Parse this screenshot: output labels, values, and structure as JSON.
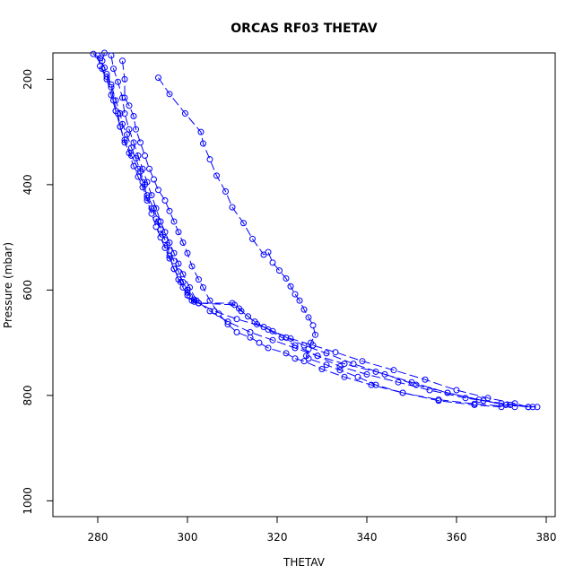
{
  "chart_data": {
    "type": "line",
    "title": "ORCAS RF03 THETAV",
    "xlabel": "THETAV",
    "ylabel": "Pressure (mbar)",
    "xlim": [
      270,
      382
    ],
    "ylim": [
      1030,
      150
    ],
    "y_reversed": true,
    "x_ticks": [
      280,
      300,
      320,
      340,
      360,
      380
    ],
    "y_ticks": [
      200,
      400,
      600,
      800,
      1000
    ],
    "grid": false,
    "line_style": "long-dash",
    "marker": "open-circle",
    "color": "#0000ff",
    "series": [
      {
        "points": [
          [
            281.5,
            150
          ],
          [
            281,
            165
          ],
          [
            281,
            180
          ],
          [
            282,
            195
          ],
          [
            283,
            215
          ],
          [
            283.5,
            240
          ],
          [
            284.5,
            265
          ],
          [
            285,
            290
          ],
          [
            286,
            315
          ],
          [
            287,
            340
          ],
          [
            288,
            365
          ],
          [
            289,
            385
          ],
          [
            290,
            405
          ],
          [
            291,
            425
          ],
          [
            292,
            445
          ],
          [
            293,
            465
          ],
          [
            294,
            485
          ],
          [
            295,
            505
          ],
          [
            296,
            525
          ],
          [
            297,
            545
          ],
          [
            298,
            565
          ],
          [
            299,
            585
          ],
          [
            300,
            600
          ],
          [
            300.5,
            612
          ],
          [
            301.5,
            622
          ],
          [
            302.5,
            625
          ],
          [
            310,
            625
          ],
          [
            312,
            640
          ],
          [
            315,
            660
          ],
          [
            318,
            675
          ],
          [
            321,
            690
          ],
          [
            324,
            705
          ],
          [
            329,
            725
          ],
          [
            334,
            745
          ],
          [
            340,
            760
          ],
          [
            347,
            775
          ],
          [
            354,
            790
          ],
          [
            362,
            805
          ],
          [
            370,
            815
          ],
          [
            377,
            822
          ]
        ]
      },
      {
        "points": [
          [
            280,
            155
          ],
          [
            280.5,
            175
          ],
          [
            282,
            200
          ],
          [
            283,
            230
          ],
          [
            284,
            260
          ],
          [
            285,
            290
          ],
          [
            286,
            320
          ],
          [
            287.5,
            345
          ],
          [
            289,
            370
          ],
          [
            290,
            395
          ],
          [
            291,
            420
          ],
          [
            292.5,
            445
          ],
          [
            293.5,
            470
          ],
          [
            294.5,
            495
          ],
          [
            295.5,
            515
          ],
          [
            296,
            535
          ],
          [
            297,
            560
          ],
          [
            298.5,
            585
          ],
          [
            300,
            605
          ],
          [
            301.5,
            618
          ],
          [
            302.5,
            625
          ],
          [
            306,
            640
          ],
          [
            311,
            655
          ],
          [
            317,
            670
          ],
          [
            322,
            690
          ],
          [
            326,
            705
          ],
          [
            331,
            720
          ],
          [
            337,
            740
          ],
          [
            344,
            760
          ],
          [
            351,
            780
          ],
          [
            358,
            795
          ],
          [
            366,
            810
          ],
          [
            371,
            818
          ],
          [
            378,
            822
          ]
        ]
      },
      {
        "points": [
          [
            283,
            155
          ],
          [
            283.5,
            180
          ],
          [
            284.5,
            205
          ],
          [
            285.5,
            235
          ],
          [
            286,
            265
          ],
          [
            287,
            295
          ],
          [
            288,
            320
          ],
          [
            289,
            345
          ],
          [
            290,
            370
          ],
          [
            291,
            395
          ],
          [
            292,
            420
          ],
          [
            293,
            445
          ],
          [
            294,
            470
          ],
          [
            295,
            490
          ],
          [
            296,
            510
          ],
          [
            297,
            530
          ],
          [
            298,
            550
          ],
          [
            299,
            570
          ],
          [
            300.5,
            595
          ],
          [
            302,
            620
          ],
          [
            305,
            640
          ],
          [
            309,
            660
          ],
          [
            314,
            680
          ],
          [
            319,
            695
          ],
          [
            324,
            710
          ],
          [
            329,
            725
          ],
          [
            335,
            740
          ],
          [
            342,
            755
          ],
          [
            350,
            775
          ],
          [
            358,
            795
          ],
          [
            365,
            808
          ],
          [
            372,
            818
          ],
          [
            376,
            822
          ]
        ]
      },
      {
        "points": [
          [
            285.5,
            165
          ],
          [
            286,
            200
          ],
          [
            286,
            235
          ],
          [
            287,
            250
          ],
          [
            288,
            270
          ],
          [
            288.5,
            295
          ],
          [
            289.5,
            320
          ],
          [
            290.5,
            345
          ],
          [
            291.5,
            370
          ],
          [
            292.5,
            390
          ],
          [
            293.5,
            410
          ],
          [
            295,
            430
          ],
          [
            296,
            450
          ],
          [
            297,
            470
          ],
          [
            298,
            490
          ],
          [
            299,
            510
          ],
          [
            300,
            530
          ],
          [
            301,
            555
          ],
          [
            302.5,
            580
          ],
          [
            303.5,
            595
          ],
          [
            305,
            620
          ],
          [
            307,
            645
          ],
          [
            309,
            665
          ],
          [
            311,
            680
          ],
          [
            314,
            690
          ],
          [
            316,
            700
          ],
          [
            318,
            710
          ],
          [
            322,
            720
          ],
          [
            324,
            730
          ],
          [
            326,
            735
          ],
          [
            330,
            750
          ],
          [
            335,
            765
          ],
          [
            341,
            780
          ],
          [
            348,
            795
          ],
          [
            356,
            808
          ],
          [
            364,
            816
          ],
          [
            373,
            822
          ]
        ]
      },
      {
        "points": [
          [
            293.5,
            197
          ],
          [
            296,
            228
          ],
          [
            299.5,
            265
          ],
          [
            303,
            300
          ],
          [
            303.5,
            322
          ],
          [
            305,
            352
          ],
          [
            306.5,
            383
          ],
          [
            308.5,
            413
          ],
          [
            310,
            443
          ],
          [
            312.5,
            473
          ],
          [
            314.5,
            503
          ],
          [
            317,
            533
          ],
          [
            318,
            528
          ],
          [
            319,
            548
          ],
          [
            320.5,
            563
          ],
          [
            322,
            578
          ],
          [
            323,
            593
          ],
          [
            324,
            608
          ],
          [
            325,
            620
          ],
          [
            326,
            637
          ],
          [
            327,
            652
          ],
          [
            328,
            667
          ],
          [
            328.5,
            685
          ],
          [
            327.5,
            700
          ],
          [
            327,
            712
          ],
          [
            326.5,
            725
          ],
          [
            327,
            730
          ],
          [
            331,
            742
          ],
          [
            334,
            752
          ],
          [
            338,
            765
          ],
          [
            342,
            780
          ],
          [
            348,
            795
          ],
          [
            356,
            810
          ],
          [
            364,
            818
          ],
          [
            370,
            822
          ]
        ]
      },
      {
        "points": [
          [
            279,
            152
          ],
          [
            280.5,
            160
          ],
          [
            281.5,
            178
          ],
          [
            282,
            190
          ],
          [
            283,
            210
          ],
          [
            284,
            240
          ],
          [
            285,
            265
          ],
          [
            285.5,
            285
          ],
          [
            286.5,
            305
          ],
          [
            287.5,
            330
          ],
          [
            288.5,
            350
          ],
          [
            289.5,
            375
          ],
          [
            290.5,
            400
          ],
          [
            291,
            430
          ],
          [
            292,
            455
          ],
          [
            293,
            480
          ],
          [
            294,
            500
          ],
          [
            295,
            520
          ],
          [
            296,
            540
          ],
          [
            297,
            560
          ],
          [
            298,
            580
          ],
          [
            299,
            595
          ],
          [
            300,
            610
          ],
          [
            301,
            620
          ],
          [
            302.5,
            625
          ],
          [
            310.5,
            628
          ],
          [
            311.5,
            635
          ],
          [
            313.5,
            650
          ],
          [
            315.5,
            665
          ],
          [
            319,
            678
          ],
          [
            323,
            692
          ],
          [
            328,
            705
          ],
          [
            333,
            718
          ],
          [
            339,
            735
          ],
          [
            346,
            752
          ],
          [
            353,
            770
          ],
          [
            360,
            790
          ],
          [
            367,
            805
          ],
          [
            373,
            815
          ],
          [
            376,
            822
          ]
        ]
      }
    ]
  }
}
